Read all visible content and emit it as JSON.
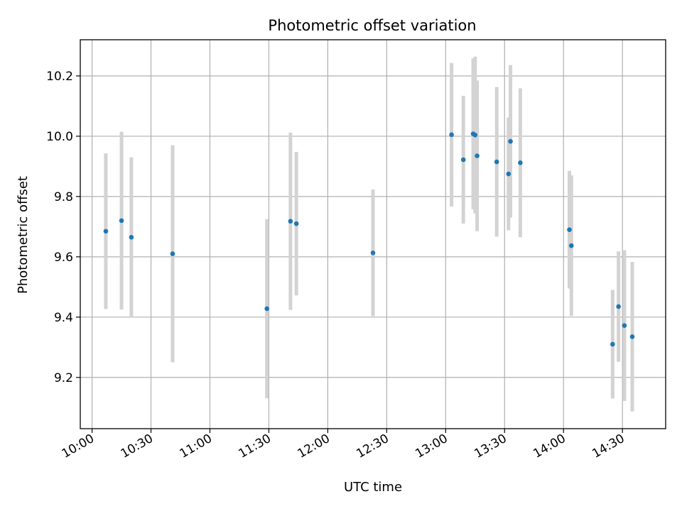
{
  "chart_data": {
    "type": "scatter",
    "title": "Photometric offset variation",
    "xlabel": "UTC time",
    "ylabel": "Photometric offset",
    "x_tick_labels": [
      "10:00",
      "10:30",
      "11:00",
      "11:30",
      "12:00",
      "12:30",
      "13:00",
      "13:30",
      "14:00",
      "14:30"
    ],
    "x_ticks": [
      "10:00",
      "10:30",
      "11:00",
      "11:30",
      "12:00",
      "12:30",
      "13:00",
      "13:30",
      "14:00",
      "14:30"
    ],
    "xlim": [
      "09:54",
      "14:52"
    ],
    "y_ticks": [
      9.2,
      9.4,
      9.6,
      9.8,
      10.0,
      10.2
    ],
    "y_tick_labels": [
      "9.2",
      "9.4",
      "9.6",
      "9.8",
      "10.0",
      "10.2"
    ],
    "ylim": [
      9.03,
      10.32
    ],
    "grid": true,
    "marker_color": "#1f77b4",
    "errorbar_color": "#d3d3d3",
    "series": [
      {
        "points": [
          {
            "x": "10:07",
            "y": 9.685,
            "err": 0.258
          },
          {
            "x": "10:15",
            "y": 9.72,
            "err": 0.295
          },
          {
            "x": "10:20",
            "y": 9.665,
            "err": 0.265
          },
          {
            "x": "10:41",
            "y": 9.61,
            "err": 0.36
          },
          {
            "x": "11:29",
            "y": 9.428,
            "err": 0.297
          },
          {
            "x": "11:41",
            "y": 9.718,
            "err": 0.294
          },
          {
            "x": "11:44",
            "y": 9.71,
            "err": 0.238
          },
          {
            "x": "12:23",
            "y": 9.613,
            "err": 0.21
          },
          {
            "x": "13:03",
            "y": 10.005,
            "err": 0.238
          },
          {
            "x": "13:09",
            "y": 9.922,
            "err": 0.212
          },
          {
            "x": "13:14",
            "y": 10.008,
            "err": 0.25
          },
          {
            "x": "13:15",
            "y": 10.004,
            "err": 0.26
          },
          {
            "x": "13:16",
            "y": 9.935,
            "err": 0.25
          },
          {
            "x": "13:26",
            "y": 9.915,
            "err": 0.248
          },
          {
            "x": "13:32",
            "y": 9.875,
            "err": 0.187
          },
          {
            "x": "13:33",
            "y": 9.983,
            "err": 0.253
          },
          {
            "x": "13:38",
            "y": 9.912,
            "err": 0.247
          },
          {
            "x": "14:03",
            "y": 9.69,
            "err": 0.195
          },
          {
            "x": "14:04",
            "y": 9.637,
            "err": 0.233
          },
          {
            "x": "14:25",
            "y": 9.31,
            "err": 0.18
          },
          {
            "x": "14:28",
            "y": 9.435,
            "err": 0.183
          },
          {
            "x": "14:31",
            "y": 9.372,
            "err": 0.25
          },
          {
            "x": "14:35",
            "y": 9.335,
            "err": 0.248
          }
        ]
      }
    ]
  }
}
